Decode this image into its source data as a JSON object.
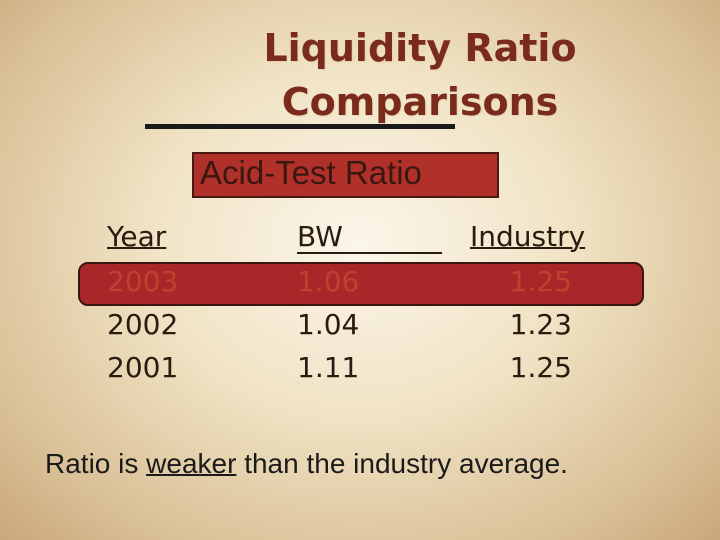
{
  "title": [
    "Liquidity Ratio",
    "Comparisons"
  ],
  "subtitle": "Acid-Test Ratio",
  "table": {
    "header": [
      "Year",
      "BW",
      "Industry"
    ],
    "rows": [
      [
        "2003",
        "1.06",
        "1.25"
      ],
      [
        "2002",
        "1.04",
        "1.23"
      ],
      [
        "2001",
        "1.11",
        "1.25"
      ]
    ]
  },
  "footnote": [
    "Ratio is ",
    "weaker",
    " than the industry average."
  ]
}
